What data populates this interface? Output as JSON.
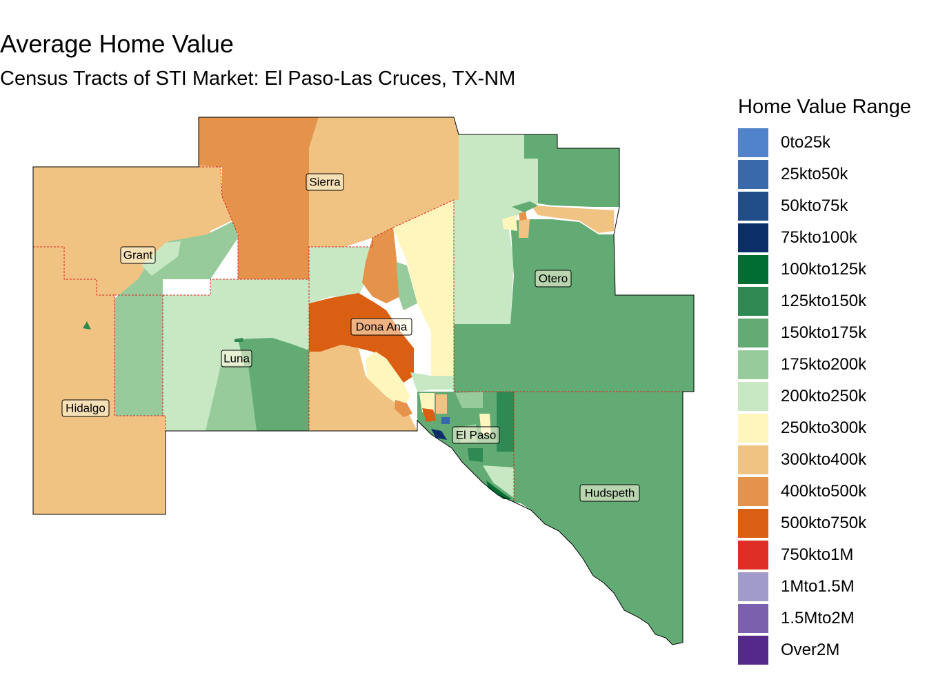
{
  "title": "Average Home Value",
  "subtitle": "Census Tracts of STI Market: El Paso-Las Cruces, TX-NM",
  "legend": {
    "title": "Home Value Range",
    "items": [
      {
        "label": "0to25k",
        "color": "#5083cc"
      },
      {
        "label": "25kto50k",
        "color": "#3a69ab"
      },
      {
        "label": "50kto75k",
        "color": "#214d89"
      },
      {
        "label": "75kto100k",
        "color": "#0b2e69"
      },
      {
        "label": "100kto125k",
        "color": "#006d32"
      },
      {
        "label": "125kto150k",
        "color": "#2e8a52"
      },
      {
        "label": "150kto175k",
        "color": "#62ab74"
      },
      {
        "label": "175kto200k",
        "color": "#98cb9c"
      },
      {
        "label": "200kto250k",
        "color": "#c8e8c4"
      },
      {
        "label": "250kto300k",
        "color": "#fff6be"
      },
      {
        "label": "300kto400k",
        "color": "#f0c383"
      },
      {
        "label": "400kto500k",
        "color": "#e5924a"
      },
      {
        "label": "500kto750k",
        "color": "#db5f12"
      },
      {
        "label": "750kto1M",
        "color": "#df2e26"
      },
      {
        "label": "1Mto1.5M",
        "color": "#a09bc9"
      },
      {
        "label": "1.5Mto2M",
        "color": "#7a60ad"
      },
      {
        "label": "Over2M",
        "color": "#55288c"
      }
    ]
  },
  "counties": {
    "hidalgo": "Hidalgo",
    "grant": "Grant",
    "sierra": "Sierra",
    "luna": "Luna",
    "dona_ana": "Dona Ana",
    "otero": "Otero",
    "el_paso": "El Paso",
    "hudspeth": "Hudspeth"
  }
}
